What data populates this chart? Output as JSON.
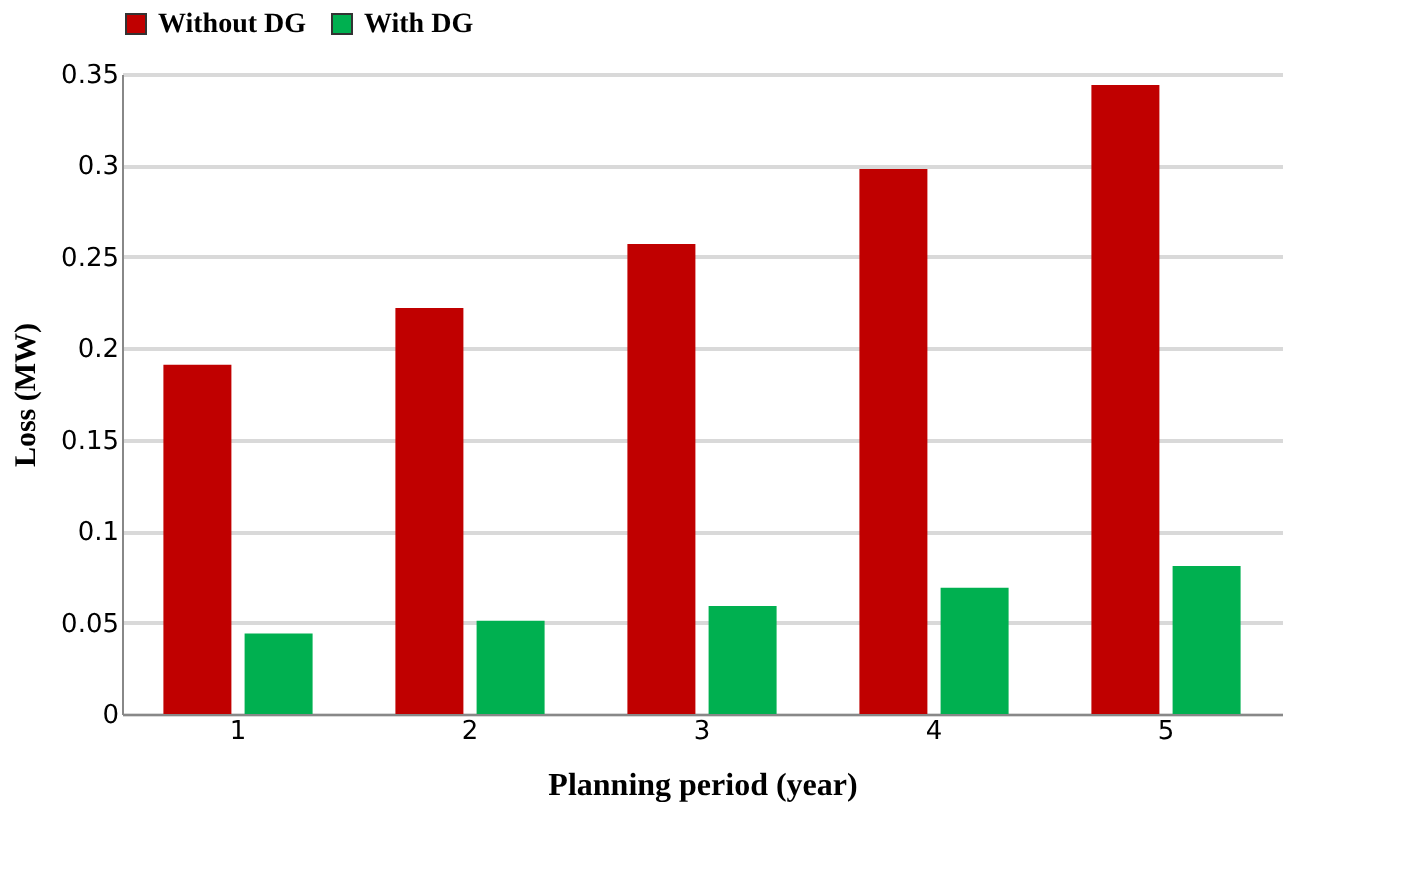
{
  "chart_data": {
    "type": "bar",
    "xlabel": "Planning period (year)",
    "ylabel": "Loss (MW)",
    "categories": [
      "1",
      "2",
      "3",
      "4",
      "5"
    ],
    "series": [
      {
        "name": "Without DG",
        "color": "#c00000",
        "values": [
          0.191,
          0.222,
          0.257,
          0.298,
          0.344
        ]
      },
      {
        "name": "With DG",
        "color": "#00b050",
        "values": [
          0.044,
          0.051,
          0.059,
          0.069,
          0.081
        ]
      }
    ],
    "ylim": [
      0,
      0.35
    ],
    "yticks": [
      0,
      0.05,
      0.1,
      0.15,
      0.2,
      0.25,
      0.3,
      0.35
    ],
    "grid": "y",
    "legend": "top"
  }
}
